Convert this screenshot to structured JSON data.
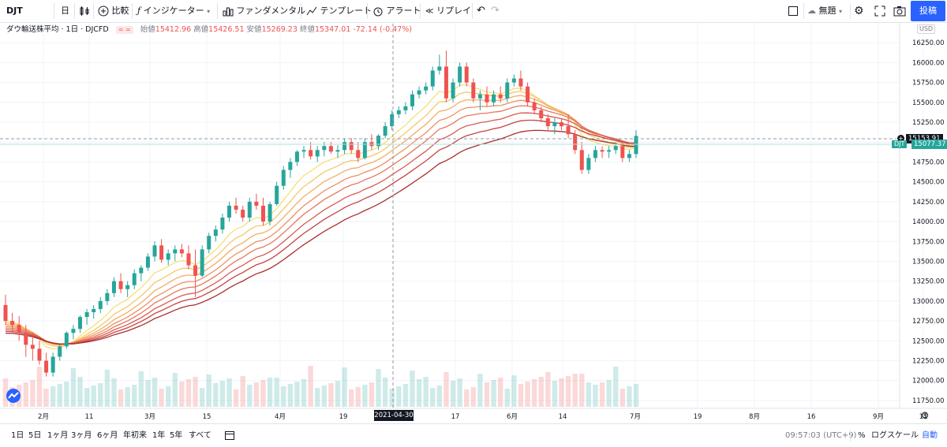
{
  "toolbar": {
    "symbol": "DJT",
    "interval": "日",
    "compare": "比較",
    "indicators": "インジケーター",
    "fundamentals": "ファンダメンタル",
    "templates": "テンプレート",
    "alert": "アラート",
    "replay": "リプレイ",
    "layout_name": "無題",
    "post_label": "投稿"
  },
  "legend": {
    "title": "ダウ輸送株平均 · 1日 · DJCFD",
    "open_label": "始値",
    "open": "15412.96",
    "high_label": "高値",
    "high": "15426.51",
    "low_label": "安値",
    "low": "15269.23",
    "close_label": "終値",
    "close": "15347.01",
    "change": "-72.14 (-0.47%)"
  },
  "price_axis": {
    "currency": "USD",
    "labels": [
      "16250.00",
      "16000.00",
      "15750.00",
      "15500.00",
      "15250.00",
      "15000.00",
      "14750.00",
      "14500.00",
      "14250.00",
      "14000.00",
      "13750.00",
      "13500.00",
      "13250.00",
      "13000.00",
      "12750.00",
      "12500.00",
      "12250.00",
      "12000.00",
      "11750.00"
    ],
    "crosshair_price": "15153.91",
    "last_price_symbol": "DJT",
    "last_price": "15077.37"
  },
  "time_axis": {
    "labels": [
      "2月",
      "11",
      "3月",
      "15",
      "4月",
      "19",
      "17",
      "6月",
      "14",
      "7月",
      "19",
      "8月",
      "16",
      "9月",
      "11"
    ],
    "crosshair_date": "2021-04-30"
  },
  "bottom": {
    "ranges": [
      "1日",
      "5日",
      "1ヶ月",
      "3ヶ月",
      "6ヶ月",
      "年初来",
      "1年",
      "5年",
      "すべて"
    ],
    "time": "09:57:03 (UTC+9)",
    "percent": "%",
    "log_scale": "ログスケール",
    "auto": "自動"
  },
  "colors": {
    "up": "#26a69a",
    "down": "#ef5350",
    "accent": "#2962ff"
  },
  "chart_data": {
    "type": "candlestick",
    "interval": "1D",
    "ylim": [
      11650,
      16500
    ],
    "candles": [
      [
        12950,
        13080,
        12700,
        12750
      ],
      [
        12750,
        12850,
        12620,
        12700
      ],
      [
        12700,
        12810,
        12500,
        12600
      ],
      [
        12600,
        12700,
        12300,
        12450
      ],
      [
        12450,
        12600,
        12250,
        12400
      ],
      [
        12400,
        12500,
        12200,
        12250
      ],
      [
        12250,
        12350,
        12050,
        12100
      ],
      [
        12100,
        12350,
        12050,
        12300
      ],
      [
        12300,
        12450,
        12250,
        12430
      ],
      [
        12430,
        12620,
        12400,
        12600
      ],
      [
        12600,
        12700,
        12520,
        12650
      ],
      [
        12650,
        12820,
        12600,
        12800
      ],
      [
        12800,
        12900,
        12700,
        12860
      ],
      [
        12860,
        12950,
        12780,
        12900
      ],
      [
        12900,
        13050,
        12850,
        13000
      ],
      [
        13000,
        13150,
        12950,
        13100
      ],
      [
        13100,
        13300,
        13050,
        13250
      ],
      [
        13250,
        13350,
        13100,
        13150
      ],
      [
        13150,
        13250,
        13050,
        13200
      ],
      [
        13200,
        13400,
        13150,
        13350
      ],
      [
        13350,
        13450,
        13250,
        13420
      ],
      [
        13420,
        13600,
        13380,
        13560
      ],
      [
        13560,
        13750,
        13500,
        13700
      ],
      [
        13700,
        13780,
        13480,
        13520
      ],
      [
        13520,
        13650,
        13450,
        13600
      ],
      [
        13600,
        13700,
        13500,
        13650
      ],
      [
        13650,
        13720,
        13550,
        13600
      ],
      [
        13600,
        13700,
        13400,
        13450
      ],
      [
        13450,
        13650,
        13050,
        13320
      ],
      [
        13320,
        13700,
        13300,
        13650
      ],
      [
        13650,
        13860,
        13600,
        13820
      ],
      [
        13820,
        13950,
        13750,
        13900
      ],
      [
        13900,
        14100,
        13850,
        14050
      ],
      [
        14050,
        14250,
        14000,
        14200
      ],
      [
        14200,
        14300,
        14100,
        14150
      ],
      [
        14150,
        14200,
        14000,
        14050
      ],
      [
        14050,
        14300,
        14000,
        14250
      ],
      [
        14250,
        14350,
        14150,
        14200
      ],
      [
        14200,
        14300,
        13950,
        14000
      ],
      [
        14000,
        14250,
        13950,
        14220
      ],
      [
        14220,
        14500,
        14200,
        14450
      ],
      [
        14450,
        14700,
        14400,
        14650
      ],
      [
        14650,
        14800,
        14550,
        14750
      ],
      [
        14750,
        14900,
        14700,
        14880
      ],
      [
        14880,
        14950,
        14800,
        14900
      ],
      [
        14900,
        15000,
        14780,
        14820
      ],
      [
        14820,
        14950,
        14750,
        14900
      ],
      [
        14900,
        15000,
        14820,
        14950
      ],
      [
        14950,
        15000,
        14850,
        14880
      ],
      [
        14880,
        14960,
        14800,
        14900
      ],
      [
        14900,
        15050,
        14850,
        15000
      ],
      [
        15000,
        15050,
        14850,
        14900
      ],
      [
        14900,
        15000,
        14750,
        14800
      ],
      [
        14800,
        15050,
        14780,
        15000
      ],
      [
        15000,
        15100,
        14900,
        14950
      ],
      [
        14950,
        15100,
        14900,
        15080
      ],
      [
        15080,
        15250,
        15050,
        15200
      ],
      [
        15200,
        15400,
        15150,
        15350
      ],
      [
        15350,
        15450,
        15300,
        15400
      ],
      [
        15400,
        15500,
        15350,
        15450
      ],
      [
        15450,
        15650,
        15400,
        15600
      ],
      [
        15600,
        15700,
        15550,
        15650
      ],
      [
        15650,
        15750,
        15600,
        15700
      ],
      [
        15700,
        15950,
        15650,
        15900
      ],
      [
        15900,
        16100,
        15850,
        15950
      ],
      [
        15950,
        16150,
        15500,
        15550
      ],
      [
        15550,
        15800,
        15500,
        15750
      ],
      [
        15750,
        16000,
        15700,
        15950
      ],
      [
        15950,
        16000,
        15700,
        15750
      ],
      [
        15750,
        15800,
        15500,
        15550
      ],
      [
        15550,
        15650,
        15400,
        15600
      ],
      [
        15600,
        15700,
        15450,
        15500
      ],
      [
        15500,
        15650,
        15450,
        15600
      ],
      [
        15600,
        15700,
        15500,
        15550
      ],
      [
        15550,
        15800,
        15500,
        15750
      ],
      [
        15750,
        15850,
        15700,
        15800
      ],
      [
        15800,
        15900,
        15650,
        15700
      ],
      [
        15700,
        15750,
        15450,
        15500
      ],
      [
        15500,
        15550,
        15350,
        15400
      ],
      [
        15400,
        15450,
        15250,
        15300
      ],
      [
        15300,
        15350,
        15150,
        15200
      ],
      [
        15200,
        15300,
        15100,
        15250
      ],
      [
        15250,
        15300,
        15150,
        15200
      ],
      [
        15200,
        15350,
        15050,
        15100
      ],
      [
        15100,
        15150,
        14850,
        14900
      ],
      [
        14900,
        15000,
        14600,
        14650
      ],
      [
        14650,
        14850,
        14600,
        14800
      ],
      [
        14800,
        14950,
        14750,
        14900
      ],
      [
        14900,
        14950,
        14800,
        14880
      ],
      [
        14880,
        14950,
        14800,
        14900
      ],
      [
        14900,
        15000,
        14850,
        14950
      ],
      [
        14950,
        15000,
        14750,
        14800
      ],
      [
        14800,
        14900,
        14750,
        14850
      ],
      [
        14850,
        15150,
        14800,
        15077
      ]
    ],
    "ribbon_ma_count": 8,
    "ribbon_colors": [
      "#f5e07a",
      "#f5c86a",
      "#f3ad62",
      "#ee9160",
      "#e6765c",
      "#d95b52",
      "#c54640",
      "#a8302a"
    ]
  }
}
